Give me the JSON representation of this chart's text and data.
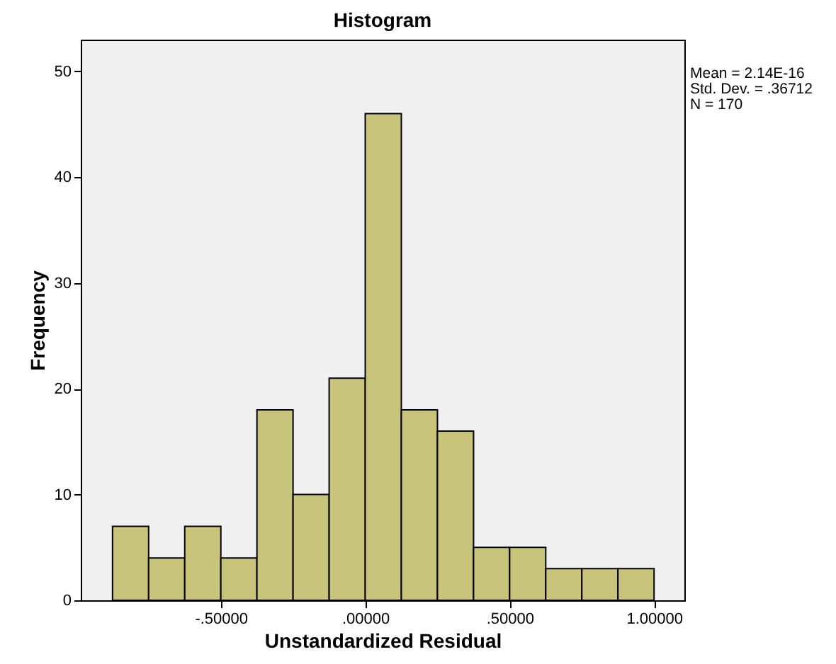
{
  "chart_data": {
    "type": "histogram",
    "title": "Histogram",
    "xlabel": "Unstandardized Residual",
    "ylabel": "Frequency",
    "bins": [
      -0.875,
      -0.75,
      -0.625,
      -0.5,
      -0.375,
      -0.25,
      -0.125,
      0,
      0.125,
      0.25,
      0.375,
      0.5,
      0.625,
      0.75,
      0.875,
      1.0
    ],
    "values": [
      7,
      4,
      7,
      4,
      18,
      10,
      21,
      46,
      18,
      16,
      5,
      5,
      3,
      3,
      3
    ],
    "color": "#c8c47c",
    "xlim": [
      -0.985,
      1.105
    ],
    "xticks": [
      {
        "value": -0.5,
        "label": "-.50000"
      },
      {
        "value": 0,
        "label": ".00000"
      },
      {
        "value": 0.5,
        "label": ".50000"
      },
      {
        "value": 1.0,
        "label": "1.00000"
      }
    ],
    "ylim": [
      0,
      53
    ],
    "yticks": [
      0,
      10,
      20,
      30,
      40,
      50
    ],
    "grid": false,
    "annotations": [
      "Mean = 2.14E-16",
      "Std. Dev. = .36712",
      "N = 170"
    ]
  }
}
